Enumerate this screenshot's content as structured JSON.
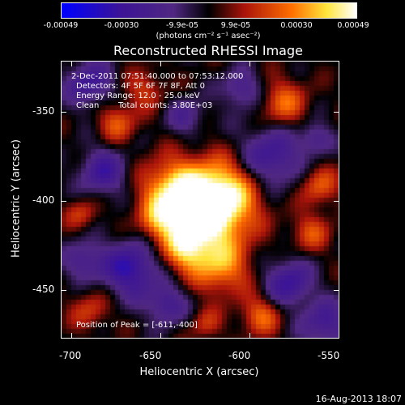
{
  "colorbar": {
    "ticks": [
      "-0.00049",
      "-0.00030",
      "-9.9e-05",
      "9.9e-05",
      "0.00030",
      "0.00049"
    ],
    "unit": "(photons cm⁻² s⁻¹ asec⁻²)",
    "colors": [
      "#0000ff",
      "#5b1a8c",
      "#000000",
      "#b01010",
      "#ff7a00",
      "#ffffff"
    ]
  },
  "title": "Reconstructed RHESSI Image",
  "info": {
    "time_range": "2-Dec-2011 07:51:40.000 to 07:53:12.000",
    "detectors": "Detectors: 4F 5F 6F 7F 8F, Att 0",
    "energy": "Energy Range: 12.0 - 25.0 keV",
    "algorithm": "Clean",
    "counts": "Total counts: 3.80E+03",
    "peak": "Position of Peak = [-611,-400]"
  },
  "axes": {
    "xlabel": "Heliocentric X (arcsec)",
    "ylabel": "Heliocentric Y (arcsec)",
    "xticks": [
      "-700",
      "-650",
      "-600",
      "-550"
    ],
    "yticks": [
      "-350",
      "-400",
      "-450"
    ]
  },
  "footer": "16-Aug-2013 18:07"
}
